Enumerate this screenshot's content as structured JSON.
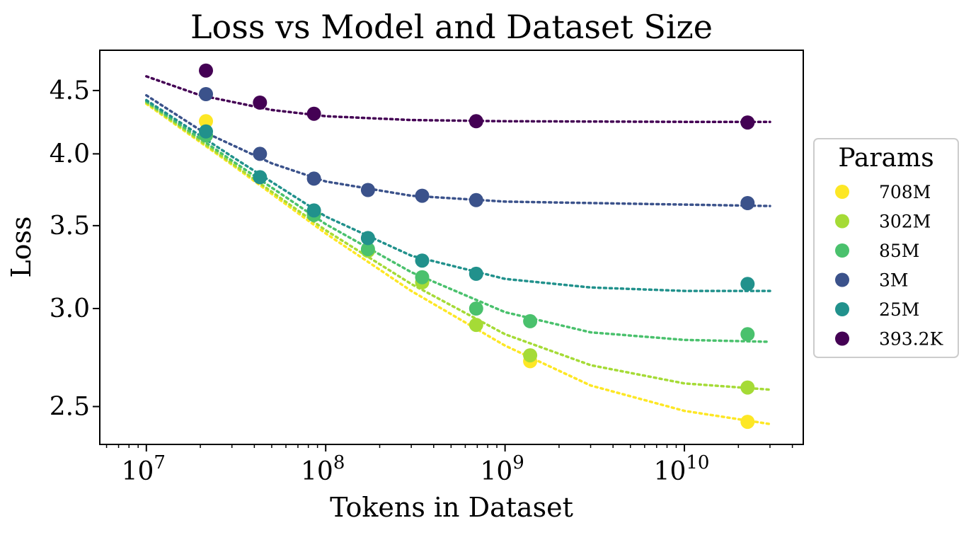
{
  "chart_data": {
    "type": "scatter",
    "title": "Loss vs Model and Dataset Size",
    "xlabel": "Tokens in Dataset",
    "ylabel": "Loss",
    "xscale": "log",
    "yscale": "log",
    "xlim": [
      5500000.0,
      46000000000.0
    ],
    "ylim": [
      2.33,
      4.85
    ],
    "xticks": [
      {
        "value": 10000000.0,
        "base": "10",
        "exp": "7"
      },
      {
        "value": 100000000.0,
        "base": "10",
        "exp": "8"
      },
      {
        "value": 1000000000.0,
        "base": "10",
        "exp": "9"
      },
      {
        "value": 10000000000.0,
        "base": "10",
        "exp": "10"
      }
    ],
    "yticks": [
      {
        "value": 2.5,
        "label": "2.5"
      },
      {
        "value": 3.0,
        "label": "3.0"
      },
      {
        "value": 3.5,
        "label": "3.5"
      },
      {
        "value": 4.0,
        "label": "4.0"
      },
      {
        "value": 4.5,
        "label": "4.5"
      }
    ],
    "grid": false,
    "legend": {
      "title": "Params",
      "placement": "right, outside plot"
    },
    "series": [
      {
        "name": "708M",
        "color": "#fde725",
        "points": [
          [
            21500000.0,
            4.25
          ],
          [
            1380000000.0,
            2.72
          ],
          [
            22500000000.0,
            2.43
          ]
        ],
        "fit": [
          [
            10000000.0,
            4.39
          ],
          [
            30000000.0,
            3.92
          ],
          [
            100000000.0,
            3.45
          ],
          [
            300000000.0,
            3.1
          ],
          [
            1000000000.0,
            2.8
          ],
          [
            3000000000.0,
            2.6
          ],
          [
            10000000000.0,
            2.48
          ],
          [
            30000000000.0,
            2.42
          ]
        ]
      },
      {
        "name": "302M",
        "color": "#a5db36",
        "points": [
          [
            21500000.0,
            4.14
          ],
          [
            86000000.0,
            3.58
          ],
          [
            172000000.0,
            3.34
          ],
          [
            345000000.0,
            3.15
          ],
          [
            690000000.0,
            2.91
          ],
          [
            1380000000.0,
            2.75
          ],
          [
            22500000000.0,
            2.59
          ]
        ],
        "fit": [
          [
            10000000.0,
            4.4
          ],
          [
            30000000.0,
            3.93
          ],
          [
            100000000.0,
            3.47
          ],
          [
            300000000.0,
            3.14
          ],
          [
            1000000000.0,
            2.86
          ],
          [
            3000000000.0,
            2.7
          ],
          [
            10000000000.0,
            2.61
          ],
          [
            30000000000.0,
            2.58
          ]
        ]
      },
      {
        "name": "85M",
        "color": "#4ac16d",
        "points": [
          [
            21500000.0,
            4.14
          ],
          [
            86000000.0,
            3.57
          ],
          [
            172000000.0,
            3.35
          ],
          [
            345000000.0,
            3.18
          ],
          [
            690000000.0,
            3.0
          ],
          [
            1380000000.0,
            2.93
          ],
          [
            22500000000.0,
            2.86
          ]
        ],
        "fit": [
          [
            10000000.0,
            4.41
          ],
          [
            30000000.0,
            3.95
          ],
          [
            100000000.0,
            3.51
          ],
          [
            300000000.0,
            3.21
          ],
          [
            1000000000.0,
            2.98
          ],
          [
            3000000000.0,
            2.87
          ],
          [
            10000000000.0,
            2.83
          ],
          [
            30000000000.0,
            2.82
          ]
        ]
      },
      {
        "name": "3M",
        "color": "#3b528b",
        "points": [
          [
            21500000.0,
            4.47
          ],
          [
            43000000.0,
            4.0
          ],
          [
            86000000.0,
            3.82
          ],
          [
            172000000.0,
            3.74
          ],
          [
            345000000.0,
            3.7
          ],
          [
            690000000.0,
            3.67
          ],
          [
            22500000000.0,
            3.65
          ]
        ],
        "fit": [
          [
            10000000.0,
            4.46
          ],
          [
            20000000.0,
            4.18
          ],
          [
            50000000.0,
            3.93
          ],
          [
            100000000.0,
            3.8
          ],
          [
            300000000.0,
            3.7
          ],
          [
            1000000000.0,
            3.66
          ],
          [
            10000000000.0,
            3.64
          ],
          [
            30000000000.0,
            3.63
          ]
        ]
      },
      {
        "name": "25M",
        "color": "#21918c",
        "points": [
          [
            21500000.0,
            4.17
          ],
          [
            43000000.0,
            3.83
          ],
          [
            86000000.0,
            3.6
          ],
          [
            172000000.0,
            3.42
          ],
          [
            345000000.0,
            3.28
          ],
          [
            690000000.0,
            3.2
          ],
          [
            22500000000.0,
            3.14
          ]
        ],
        "fit": [
          [
            10000000.0,
            4.42
          ],
          [
            30000000.0,
            3.98
          ],
          [
            100000000.0,
            3.56
          ],
          [
            300000000.0,
            3.31
          ],
          [
            1000000000.0,
            3.17
          ],
          [
            3000000000.0,
            3.12
          ],
          [
            10000000000.0,
            3.1
          ],
          [
            30000000000.0,
            3.1
          ]
        ]
      },
      {
        "name": "393.2K",
        "color": "#440154",
        "points": [
          [
            21500000.0,
            4.67
          ],
          [
            43000000.0,
            4.4
          ],
          [
            86000000.0,
            4.31
          ],
          [
            690000000.0,
            4.25
          ],
          [
            22500000000.0,
            4.24
          ]
        ],
        "fit": [
          [
            10000000.0,
            4.62
          ],
          [
            20000000.0,
            4.46
          ],
          [
            50000000.0,
            4.34
          ],
          [
            100000000.0,
            4.29
          ],
          [
            300000000.0,
            4.26
          ],
          [
            1000000000.0,
            4.25
          ],
          [
            10000000000.0,
            4.245
          ],
          [
            30000000000.0,
            4.245
          ]
        ]
      }
    ],
    "legend_order": [
      "708M",
      "302M",
      "85M",
      "3M",
      "25M",
      "393.2K"
    ]
  }
}
